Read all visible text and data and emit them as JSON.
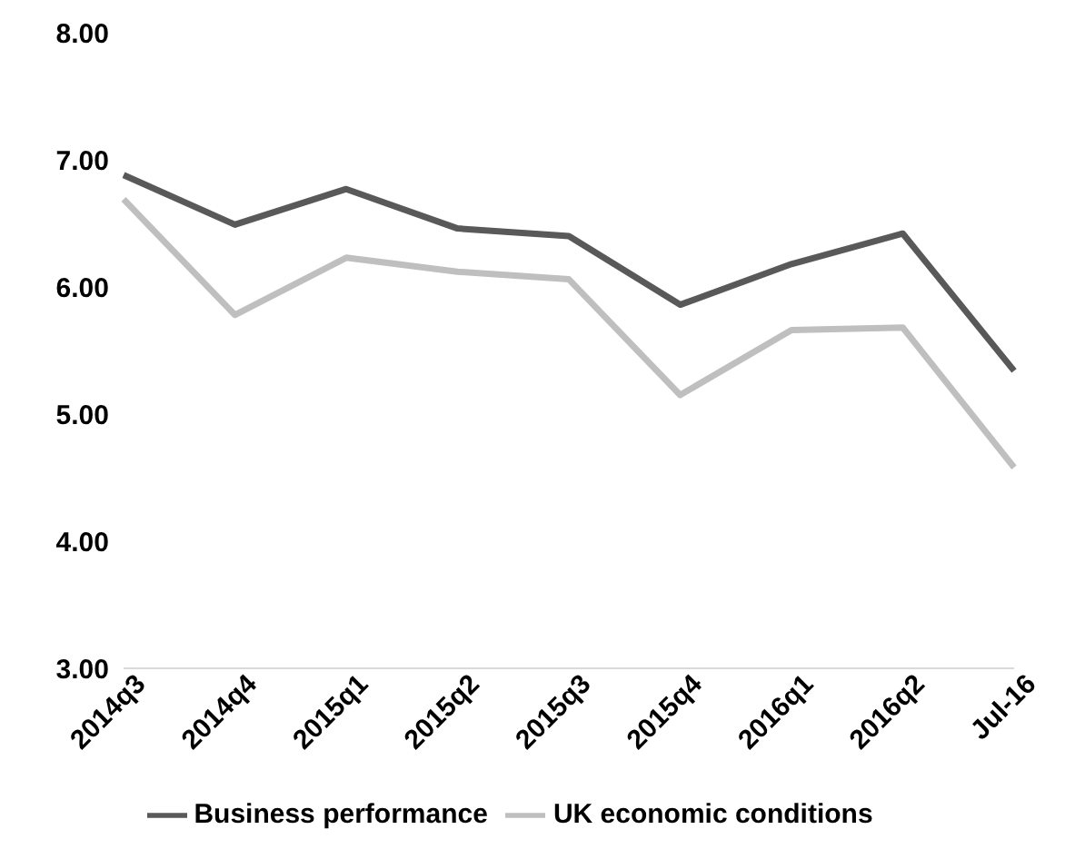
{
  "chart_data": {
    "type": "line",
    "categories": [
      "2014q3",
      "2014q4",
      "2015q1",
      "2015q2",
      "2015q3",
      "2015q4",
      "2016q1",
      "2016q2",
      "Jul-16"
    ],
    "series": [
      {
        "name": "Business performance",
        "color": "#595959",
        "values": [
          6.88,
          6.49,
          6.77,
          6.46,
          6.4,
          5.86,
          6.18,
          6.42,
          5.34
        ]
      },
      {
        "name": "UK economic conditions",
        "color": "#bfbfbf",
        "values": [
          6.69,
          5.78,
          6.23,
          6.12,
          6.06,
          5.15,
          5.66,
          5.68,
          4.58
        ]
      }
    ],
    "ylim": [
      3,
      8
    ],
    "yticks": [
      {
        "value": 3,
        "label": "3.00"
      },
      {
        "value": 4,
        "label": "4.00"
      },
      {
        "value": 5,
        "label": "5.00"
      },
      {
        "value": 6,
        "label": "6.00"
      },
      {
        "value": 7,
        "label": "7.00"
      },
      {
        "value": 8,
        "label": "8.00"
      }
    ],
    "grid": false,
    "legend": "bottom",
    "marker": "none",
    "line_style": "solid"
  }
}
